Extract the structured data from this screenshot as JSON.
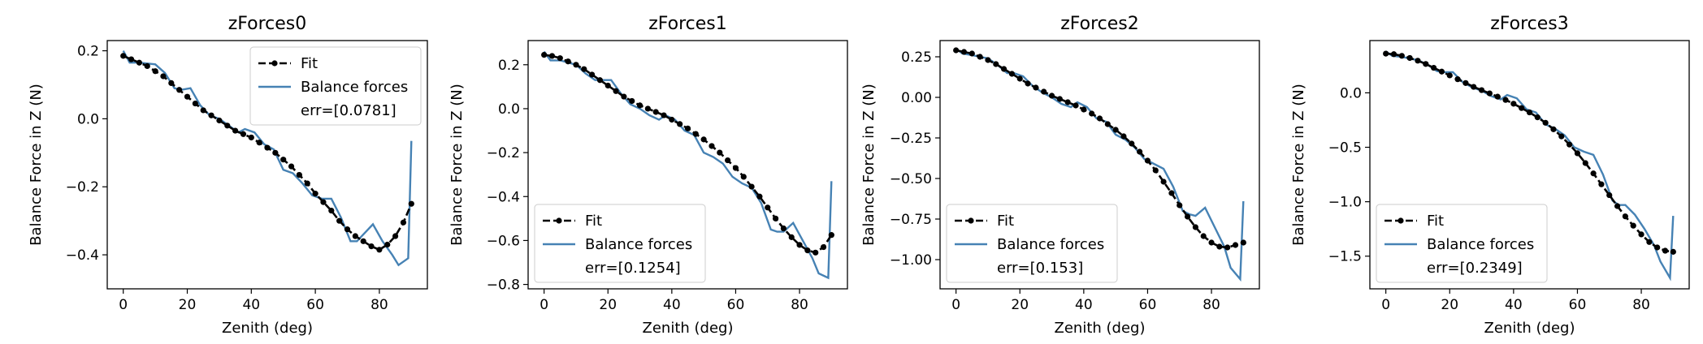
{
  "chart_data": [
    {
      "type": "line",
      "title": "zForces0",
      "xlabel": "Zenith (deg)",
      "ylabel": "Balance Force in Z (N)",
      "xlim": [
        -5,
        95
      ],
      "ylim": [
        -0.5,
        0.23
      ],
      "xticks": [
        0,
        20,
        40,
        60,
        80
      ],
      "yticks": [
        0.2,
        0.0,
        -0.2,
        -0.4
      ],
      "ytick_labels": [
        "0.2",
        "0.0",
        "−0.2",
        "−0.4"
      ],
      "legend_location": "top-right",
      "legend_note": "err=[0.0781]",
      "series": [
        {
          "name": "Fit",
          "style": "dashed-dots",
          "color": "#000000",
          "x": [
            0,
            2.5,
            5,
            7.5,
            10,
            12.5,
            15,
            17.5,
            20,
            22.5,
            25,
            27.5,
            30,
            32.5,
            35,
            37.5,
            40,
            42.5,
            45,
            47.5,
            50,
            52.5,
            55,
            57.5,
            60,
            62.5,
            65,
            67.5,
            70,
            72.5,
            75,
            77.5,
            80,
            82.5,
            85,
            87.5,
            90
          ],
          "y": [
            0.185,
            0.175,
            0.165,
            0.155,
            0.14,
            0.125,
            0.105,
            0.085,
            0.065,
            0.045,
            0.025,
            0.01,
            -0.005,
            -0.02,
            -0.035,
            -0.045,
            -0.055,
            -0.07,
            -0.085,
            -0.1,
            -0.12,
            -0.14,
            -0.165,
            -0.19,
            -0.22,
            -0.245,
            -0.27,
            -0.3,
            -0.325,
            -0.345,
            -0.36,
            -0.375,
            -0.385,
            -0.37,
            -0.345,
            -0.305,
            -0.25
          ]
        },
        {
          "name": "Balance forces",
          "style": "solid",
          "color": "#4682b4",
          "x": [
            0,
            2,
            5,
            10,
            13,
            16,
            18,
            21,
            24,
            27,
            30,
            33,
            36,
            38,
            41,
            44,
            47,
            50,
            53,
            56,
            59,
            62,
            65,
            68,
            71,
            73,
            75,
            78,
            81,
            84,
            86,
            89,
            90
          ],
          "y": [
            0.2,
            0.165,
            0.165,
            0.16,
            0.135,
            0.09,
            0.085,
            0.09,
            0.04,
            0.01,
            0.0,
            -0.02,
            -0.04,
            -0.03,
            -0.04,
            -0.075,
            -0.09,
            -0.15,
            -0.16,
            -0.19,
            -0.225,
            -0.235,
            -0.235,
            -0.29,
            -0.36,
            -0.36,
            -0.34,
            -0.31,
            -0.36,
            -0.4,
            -0.43,
            -0.41,
            -0.065
          ]
        }
      ]
    },
    {
      "type": "line",
      "title": "zForces1",
      "xlabel": "Zenith (deg)",
      "ylabel": "Balance Force in Z (N)",
      "xlim": [
        -5,
        95
      ],
      "ylim": [
        -0.82,
        0.31
      ],
      "xticks": [
        0,
        20,
        40,
        60,
        80
      ],
      "yticks": [
        0.2,
        0.0,
        -0.2,
        -0.4,
        -0.6,
        -0.8
      ],
      "ytick_labels": [
        "0.2",
        "0.0",
        "−0.2",
        "−0.4",
        "−0.6",
        "−0.8"
      ],
      "legend_location": "bottom-left",
      "legend_note": "err=[0.1254]",
      "series": [
        {
          "name": "Fit",
          "style": "dashed-dots",
          "color": "#000000",
          "x": [
            0,
            2.5,
            5,
            7.5,
            10,
            12.5,
            15,
            17.5,
            20,
            22.5,
            25,
            27.5,
            30,
            32.5,
            35,
            37.5,
            40,
            42.5,
            45,
            47.5,
            50,
            52.5,
            55,
            57.5,
            60,
            62.5,
            65,
            67.5,
            70,
            72.5,
            75,
            77.5,
            80,
            82.5,
            85,
            87.5,
            90
          ],
          "y": [
            0.245,
            0.24,
            0.23,
            0.215,
            0.2,
            0.18,
            0.155,
            0.13,
            0.105,
            0.08,
            0.055,
            0.035,
            0.015,
            0.0,
            -0.015,
            -0.03,
            -0.05,
            -0.07,
            -0.09,
            -0.115,
            -0.14,
            -0.17,
            -0.2,
            -0.235,
            -0.27,
            -0.31,
            -0.355,
            -0.4,
            -0.45,
            -0.5,
            -0.545,
            -0.585,
            -0.62,
            -0.645,
            -0.655,
            -0.63,
            -0.575
          ]
        },
        {
          "name": "Balance forces",
          "style": "solid",
          "color": "#4682b4",
          "x": [
            0,
            2,
            5,
            10,
            13,
            16,
            18,
            21,
            24,
            27,
            30,
            33,
            36,
            38,
            41,
            44,
            47,
            50,
            53,
            56,
            59,
            62,
            65,
            68,
            71,
            73,
            75,
            78,
            81,
            84,
            86,
            89,
            90
          ],
          "y": [
            0.26,
            0.22,
            0.22,
            0.2,
            0.16,
            0.13,
            0.13,
            0.13,
            0.07,
            0.02,
            0.0,
            -0.03,
            -0.05,
            -0.03,
            -0.05,
            -0.1,
            -0.12,
            -0.2,
            -0.22,
            -0.25,
            -0.31,
            -0.34,
            -0.36,
            -0.43,
            -0.55,
            -0.56,
            -0.56,
            -0.52,
            -0.6,
            -0.68,
            -0.75,
            -0.77,
            -0.33
          ]
        }
      ]
    },
    {
      "type": "line",
      "title": "zForces2",
      "xlabel": "Zenith (deg)",
      "ylabel": "Balance Force in Z (N)",
      "xlim": [
        -5,
        95
      ],
      "ylim": [
        -1.18,
        0.35
      ],
      "xticks": [
        0,
        20,
        40,
        60,
        80
      ],
      "yticks": [
        0.25,
        0.0,
        -0.25,
        -0.5,
        -0.75,
        -1.0
      ],
      "ytick_labels": [
        "0.25",
        "0.00",
        "−0.25",
        "−0.50",
        "−0.75",
        "−1.00"
      ],
      "legend_location": "bottom-left",
      "legend_note": "err=[0.153]",
      "series": [
        {
          "name": "Fit",
          "style": "dashed-dots",
          "color": "#000000",
          "x": [
            0,
            2.5,
            5,
            7.5,
            10,
            12.5,
            15,
            17.5,
            20,
            22.5,
            25,
            27.5,
            30,
            32.5,
            35,
            37.5,
            40,
            42.5,
            45,
            47.5,
            50,
            52.5,
            55,
            57.5,
            60,
            62.5,
            65,
            67.5,
            70,
            72.5,
            75,
            77.5,
            80,
            82.5,
            85,
            87.5,
            90
          ],
          "y": [
            0.29,
            0.28,
            0.27,
            0.25,
            0.23,
            0.205,
            0.175,
            0.145,
            0.115,
            0.085,
            0.06,
            0.035,
            0.01,
            -0.01,
            -0.03,
            -0.05,
            -0.075,
            -0.1,
            -0.13,
            -0.165,
            -0.2,
            -0.24,
            -0.285,
            -0.335,
            -0.39,
            -0.45,
            -0.52,
            -0.59,
            -0.665,
            -0.735,
            -0.8,
            -0.855,
            -0.895,
            -0.92,
            -0.925,
            -0.91,
            -0.895
          ]
        },
        {
          "name": "Balance forces",
          "style": "solid",
          "color": "#4682b4",
          "x": [
            0,
            2,
            5,
            10,
            13,
            16,
            18,
            21,
            24,
            27,
            30,
            33,
            36,
            38,
            41,
            44,
            47,
            50,
            53,
            56,
            59,
            62,
            65,
            68,
            71,
            73,
            75,
            78,
            81,
            84,
            86,
            89,
            90
          ],
          "y": [
            0.3,
            0.27,
            0.26,
            0.24,
            0.2,
            0.15,
            0.15,
            0.13,
            0.07,
            0.03,
            0.0,
            -0.04,
            -0.06,
            -0.03,
            -0.06,
            -0.13,
            -0.15,
            -0.23,
            -0.26,
            -0.31,
            -0.38,
            -0.41,
            -0.44,
            -0.55,
            -0.7,
            -0.72,
            -0.73,
            -0.68,
            -0.8,
            -0.92,
            -1.05,
            -1.12,
            -0.64
          ]
        }
      ]
    },
    {
      "type": "line",
      "title": "zForces3",
      "xlabel": "Zenith (deg)",
      "ylabel": "Balance Force in Z (N)",
      "xlim": [
        -5,
        95
      ],
      "ylim": [
        -1.8,
        0.48
      ],
      "xticks": [
        0,
        20,
        40,
        60,
        80
      ],
      "yticks": [
        0.0,
        -0.5,
        -1.0,
        -1.5
      ],
      "ytick_labels": [
        "0.0",
        "−0.5",
        "−1.0",
        "−1.5"
      ],
      "legend_location": "bottom-left",
      "legend_note": "err=[0.2349]",
      "series": [
        {
          "name": "Fit",
          "style": "dashed-dots",
          "color": "#000000",
          "x": [
            0,
            2.5,
            5,
            7.5,
            10,
            12.5,
            15,
            17.5,
            20,
            22.5,
            25,
            27.5,
            30,
            32.5,
            35,
            37.5,
            40,
            42.5,
            45,
            47.5,
            50,
            52.5,
            55,
            57.5,
            60,
            62.5,
            65,
            67.5,
            70,
            72.5,
            75,
            77.5,
            80,
            82.5,
            85,
            87.5,
            90
          ],
          "y": [
            0.36,
            0.355,
            0.34,
            0.32,
            0.295,
            0.265,
            0.23,
            0.195,
            0.16,
            0.125,
            0.09,
            0.055,
            0.025,
            -0.005,
            -0.035,
            -0.065,
            -0.1,
            -0.14,
            -0.18,
            -0.225,
            -0.275,
            -0.335,
            -0.4,
            -0.475,
            -0.555,
            -0.645,
            -0.74,
            -0.84,
            -0.94,
            -1.04,
            -1.135,
            -1.22,
            -1.3,
            -1.37,
            -1.42,
            -1.45,
            -1.46
          ]
        },
        {
          "name": "Balance forces",
          "style": "solid",
          "color": "#4682b4",
          "x": [
            0,
            2,
            5,
            10,
            13,
            16,
            18,
            21,
            24,
            27,
            30,
            33,
            36,
            38,
            41,
            44,
            47,
            50,
            53,
            56,
            59,
            62,
            65,
            68,
            71,
            73,
            75,
            78,
            81,
            84,
            86,
            89,
            90
          ],
          "y": [
            0.38,
            0.34,
            0.33,
            0.3,
            0.26,
            0.2,
            0.19,
            0.19,
            0.1,
            0.05,
            0.02,
            -0.03,
            -0.06,
            -0.02,
            -0.05,
            -0.15,
            -0.18,
            -0.29,
            -0.33,
            -0.39,
            -0.5,
            -0.54,
            -0.57,
            -0.75,
            -0.99,
            -1.03,
            -1.03,
            -1.12,
            -1.25,
            -1.4,
            -1.55,
            -1.7,
            -1.13
          ]
        }
      ]
    }
  ]
}
